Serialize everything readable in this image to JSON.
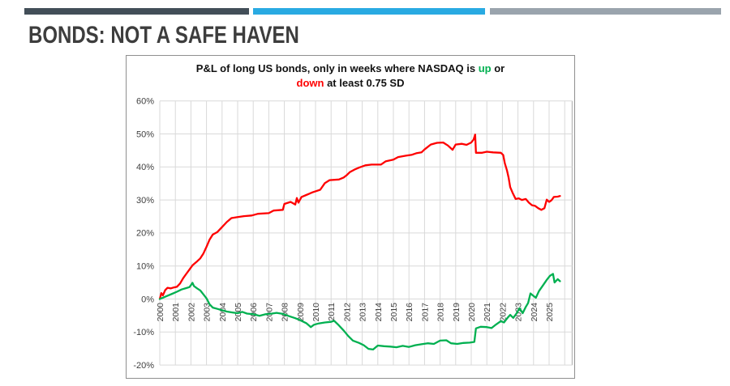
{
  "slide": {
    "title": "BONDS: NOT A SAFE HAVEN"
  },
  "colors": {
    "accent_dark": "#424e58",
    "accent_blue": "#29aae2",
    "accent_gray": "#9aa4ad",
    "red": "#fe0000",
    "green": "#00b050",
    "grid": "#d9d9d9",
    "plot_right_edge": "#c0c0c0",
    "axis_text": "#404040",
    "title_text": "#3d3d3d",
    "chart_border": "#8f8f8f"
  },
  "chart": {
    "title_parts": {
      "prefix": "P&L of long US bonds, only in weeks where NASDAQ is ",
      "up": "up",
      "middle": " or",
      "down": "down",
      "suffix": " at least 0.75 SD"
    }
  },
  "chart_data": {
    "type": "line",
    "title": "P&L of long US bonds, only in weeks where NASDAQ is up or down at least 0.75 SD",
    "xlabel": "",
    "ylabel": "",
    "legend": "none (series colors referenced by title words: up = green, down = red)",
    "grid": "on",
    "x_axis": {
      "min": 2000,
      "max": 2026.5,
      "gridline_step_years": 1,
      "label_rotation_deg": -90
    },
    "y_axis": {
      "min": -20,
      "max": 60,
      "tick_step": 10,
      "format": "percent"
    },
    "ylim": [
      -20,
      60
    ],
    "x_ticks": [
      2000,
      2001,
      2002,
      2003,
      2004,
      2005,
      2006,
      2007,
      2008,
      2009,
      2010,
      2011,
      2012,
      2013,
      2014,
      2015,
      2016,
      2017,
      2018,
      2019,
      2020,
      2021,
      2022,
      2023,
      2024,
      2025
    ],
    "series": [
      {
        "name": "down at least 0.75 SD",
        "color_key": "red",
        "color": "#fe0000",
        "points": [
          [
            2000.0,
            0
          ],
          [
            2000.1,
            1.8
          ],
          [
            2000.2,
            1.1
          ],
          [
            2000.35,
            2.7
          ],
          [
            2000.5,
            3.4
          ],
          [
            2000.7,
            3.2
          ],
          [
            2000.9,
            3.5
          ],
          [
            2001.1,
            3.7
          ],
          [
            2001.3,
            4.7
          ],
          [
            2001.5,
            6.3
          ],
          [
            2001.7,
            7.6
          ],
          [
            2001.9,
            8.9
          ],
          [
            2002.1,
            10.2
          ],
          [
            2002.35,
            11.2
          ],
          [
            2002.6,
            12.3
          ],
          [
            2002.8,
            13.8
          ],
          [
            2003.0,
            15.8
          ],
          [
            2003.2,
            18.0
          ],
          [
            2003.4,
            19.5
          ],
          [
            2003.7,
            20.3
          ],
          [
            2004.0,
            21.8
          ],
          [
            2004.3,
            23.3
          ],
          [
            2004.6,
            24.5
          ],
          [
            2005.0,
            24.8
          ],
          [
            2005.4,
            25.1
          ],
          [
            2005.9,
            25.3
          ],
          [
            2006.3,
            25.8
          ],
          [
            2007.0,
            26.0
          ],
          [
            2007.3,
            26.8
          ],
          [
            2007.9,
            27.0
          ],
          [
            2008.0,
            28.8
          ],
          [
            2008.4,
            29.4
          ],
          [
            2008.7,
            28.6
          ],
          [
            2008.8,
            30.6
          ],
          [
            2008.9,
            29.2
          ],
          [
            2009.1,
            30.9
          ],
          [
            2009.4,
            31.5
          ],
          [
            2009.8,
            32.3
          ],
          [
            2010.3,
            33.1
          ],
          [
            2010.6,
            35.1
          ],
          [
            2010.9,
            36.0
          ],
          [
            2011.5,
            36.2
          ],
          [
            2011.8,
            36.8
          ],
          [
            2012.0,
            37.5
          ],
          [
            2012.2,
            38.4
          ],
          [
            2012.5,
            39.2
          ],
          [
            2012.8,
            39.8
          ],
          [
            2013.2,
            40.5
          ],
          [
            2013.6,
            40.7
          ],
          [
            2014.2,
            40.7
          ],
          [
            2014.5,
            41.7
          ],
          [
            2015.0,
            42.2
          ],
          [
            2015.3,
            43.0
          ],
          [
            2015.8,
            43.4
          ],
          [
            2016.2,
            43.7
          ],
          [
            2016.5,
            44.2
          ],
          [
            2016.8,
            44.4
          ],
          [
            2017.0,
            45.3
          ],
          [
            2017.4,
            46.8
          ],
          [
            2017.8,
            47.3
          ],
          [
            2018.2,
            47.4
          ],
          [
            2018.5,
            46.5
          ],
          [
            2018.8,
            45.2
          ],
          [
            2019.0,
            46.8
          ],
          [
            2019.4,
            47.0
          ],
          [
            2019.7,
            46.7
          ],
          [
            2020.0,
            47.4
          ],
          [
            2020.15,
            48.3
          ],
          [
            2020.25,
            49.8
          ],
          [
            2020.3,
            44.3
          ],
          [
            2020.7,
            44.3
          ],
          [
            2021.0,
            44.6
          ],
          [
            2021.4,
            44.4
          ],
          [
            2021.9,
            44.3
          ],
          [
            2022.05,
            43.6
          ],
          [
            2022.15,
            41.2
          ],
          [
            2022.3,
            38.8
          ],
          [
            2022.4,
            36.7
          ],
          [
            2022.5,
            33.9
          ],
          [
            2022.65,
            32.2
          ],
          [
            2022.85,
            30.3
          ],
          [
            2023.05,
            30.5
          ],
          [
            2023.25,
            30.0
          ],
          [
            2023.5,
            30.3
          ],
          [
            2023.7,
            29.2
          ],
          [
            2023.9,
            28.4
          ],
          [
            2024.1,
            28.2
          ],
          [
            2024.3,
            27.5
          ],
          [
            2024.5,
            27.0
          ],
          [
            2024.7,
            27.5
          ],
          [
            2024.85,
            30.1
          ],
          [
            2025.0,
            29.4
          ],
          [
            2025.15,
            29.9
          ],
          [
            2025.3,
            30.9
          ],
          [
            2025.55,
            31.0
          ],
          [
            2025.7,
            31.2
          ]
        ]
      },
      {
        "name": "up at least 0.75 SD",
        "color_key": "green",
        "color": "#00b050",
        "points": [
          [
            2000.0,
            0
          ],
          [
            2000.2,
            0.4
          ],
          [
            2000.5,
            1.0
          ],
          [
            2000.8,
            1.6
          ],
          [
            2001.1,
            2.2
          ],
          [
            2001.4,
            2.9
          ],
          [
            2001.7,
            3.3
          ],
          [
            2001.9,
            3.6
          ],
          [
            2002.0,
            4.2
          ],
          [
            2002.1,
            4.9
          ],
          [
            2002.2,
            3.9
          ],
          [
            2002.4,
            3.2
          ],
          [
            2002.6,
            2.6
          ],
          [
            2002.8,
            1.4
          ],
          [
            2003.0,
            0.2
          ],
          [
            2003.2,
            -1.6
          ],
          [
            2003.4,
            -2.6
          ],
          [
            2003.7,
            -3.0
          ],
          [
            2004.0,
            -3.4
          ],
          [
            2004.3,
            -3.8
          ],
          [
            2004.7,
            -4.1
          ],
          [
            2005.0,
            -4.3
          ],
          [
            2005.3,
            -3.9
          ],
          [
            2005.6,
            -4.4
          ],
          [
            2006.0,
            -4.6
          ],
          [
            2006.4,
            -5.1
          ],
          [
            2006.8,
            -4.6
          ],
          [
            2007.2,
            -4.4
          ],
          [
            2007.5,
            -4.2
          ],
          [
            2007.9,
            -4.5
          ],
          [
            2008.3,
            -5.2
          ],
          [
            2008.7,
            -5.8
          ],
          [
            2009.0,
            -6.4
          ],
          [
            2009.4,
            -7.3
          ],
          [
            2009.7,
            -8.5
          ],
          [
            2009.9,
            -7.8
          ],
          [
            2010.2,
            -7.4
          ],
          [
            2010.6,
            -7.1
          ],
          [
            2011.0,
            -6.9
          ],
          [
            2011.2,
            -6.6
          ],
          [
            2011.5,
            -8.0
          ],
          [
            2011.8,
            -9.5
          ],
          [
            2012.1,
            -11.2
          ],
          [
            2012.4,
            -12.6
          ],
          [
            2012.8,
            -13.3
          ],
          [
            2013.1,
            -14.0
          ],
          [
            2013.4,
            -15.1
          ],
          [
            2013.7,
            -15.3
          ],
          [
            2014.0,
            -14.1
          ],
          [
            2014.4,
            -14.3
          ],
          [
            2014.8,
            -14.4
          ],
          [
            2015.2,
            -14.6
          ],
          [
            2015.6,
            -14.2
          ],
          [
            2016.0,
            -14.5
          ],
          [
            2016.4,
            -14.0
          ],
          [
            2016.8,
            -13.7
          ],
          [
            2017.2,
            -13.4
          ],
          [
            2017.6,
            -13.6
          ],
          [
            2018.0,
            -12.6
          ],
          [
            2018.4,
            -12.5
          ],
          [
            2018.7,
            -13.4
          ],
          [
            2019.1,
            -13.6
          ],
          [
            2019.5,
            -13.3
          ],
          [
            2019.9,
            -13.2
          ],
          [
            2020.2,
            -13.0
          ],
          [
            2020.3,
            -8.9
          ],
          [
            2020.6,
            -8.4
          ],
          [
            2021.0,
            -8.5
          ],
          [
            2021.3,
            -8.8
          ],
          [
            2021.6,
            -7.7
          ],
          [
            2021.9,
            -6.7
          ],
          [
            2022.1,
            -7.1
          ],
          [
            2022.35,
            -5.6
          ],
          [
            2022.5,
            -4.8
          ],
          [
            2022.7,
            -5.7
          ],
          [
            2022.9,
            -4.4
          ],
          [
            2023.1,
            -2.8
          ],
          [
            2023.3,
            -4.3
          ],
          [
            2023.5,
            -2.4
          ],
          [
            2023.65,
            -1.2
          ],
          [
            2023.8,
            1.7
          ],
          [
            2024.0,
            0.9
          ],
          [
            2024.15,
            0.4
          ],
          [
            2024.35,
            2.4
          ],
          [
            2024.6,
            4.1
          ],
          [
            2024.85,
            5.8
          ],
          [
            2025.05,
            7.0
          ],
          [
            2025.25,
            7.6
          ],
          [
            2025.35,
            5.0
          ],
          [
            2025.55,
            6.0
          ],
          [
            2025.7,
            5.4
          ]
        ]
      }
    ]
  }
}
